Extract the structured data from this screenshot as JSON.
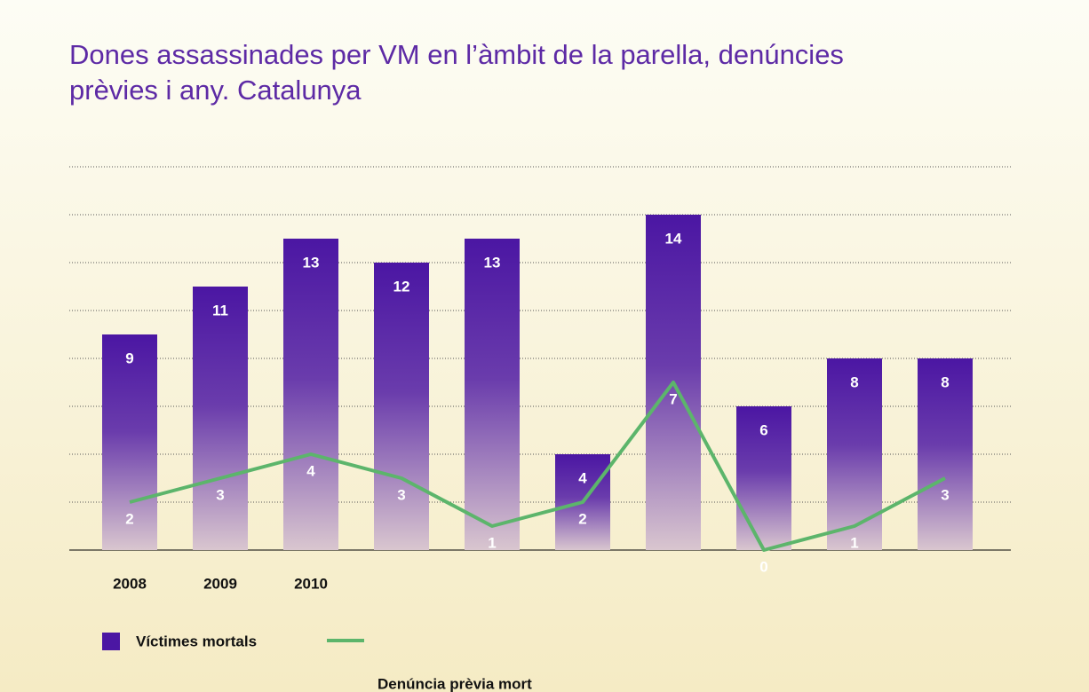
{
  "chart_data": {
    "type": "bar",
    "title": "Dones assassinades per VM en l’àmbit de la parella, denúncies\nprèvies i any. Catalunya",
    "categories": [
      "2008",
      "2009",
      "2010",
      null,
      null,
      null,
      null,
      null,
      null,
      null
    ],
    "series": [
      {
        "name": "Víctimes mortals",
        "type": "bar",
        "color": "#4b16a3",
        "values": [
          9,
          11,
          13,
          12,
          13,
          4,
          14,
          6,
          8,
          8
        ]
      },
      {
        "name": "Denúncia prèvia mort",
        "type": "line",
        "color": "#5cb56b",
        "values": [
          2,
          3,
          4,
          3,
          1,
          2,
          7,
          0,
          1,
          3
        ]
      }
    ],
    "ylim": [
      0,
      16
    ],
    "yticks": [
      0,
      2,
      4,
      6,
      8,
      10,
      12,
      14,
      16
    ],
    "grid": true
  }
}
